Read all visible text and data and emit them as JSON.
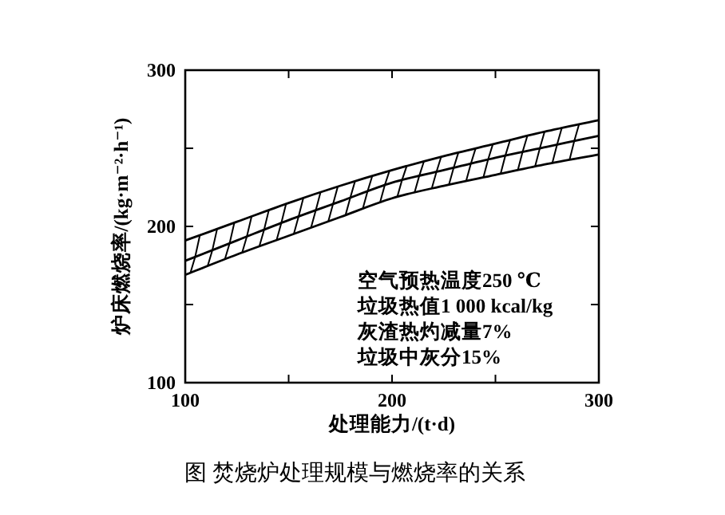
{
  "chart_data": {
    "type": "line",
    "title": "图 焚烧炉处理规模与燃烧率的关系",
    "xlabel": "处理能力/(t·d)",
    "ylabel": "炉床燃烧率/(kg·m⁻²·h⁻¹)",
    "x": [
      100,
      125,
      150,
      175,
      200,
      225,
      250,
      275,
      300
    ],
    "series": [
      {
        "color": "#000000",
        "values": [
          191,
          203,
          215,
          226,
          236,
          245,
          253,
          261,
          268
        ]
      },
      {
        "color": "#000000",
        "values": [
          178,
          191,
          204,
          216,
          228,
          236,
          244,
          251,
          258
        ]
      },
      {
        "color": "#000000",
        "values": [
          169,
          182,
          194,
          206,
          218,
          226,
          233,
          240,
          246
        ]
      }
    ],
    "annotations": [
      "空气预热温度250 ℃",
      "垃圾热值1 000 kcal/kg",
      "灰渣热灼减量7%",
      "垃圾中灰分15%"
    ],
    "xlim": [
      100,
      300
    ],
    "ylim": [
      100,
      300
    ],
    "xticks": [
      100,
      {
        "value": 150,
        "label": null
      },
      200,
      {
        "value": 250,
        "label": null
      },
      300
    ],
    "yticks": [
      100,
      {
        "value": 150,
        "label": null
      },
      200,
      {
        "value": 250,
        "label": null
      },
      300
    ],
    "grid": false,
    "marker": "none",
    "line_style": "solid"
  }
}
